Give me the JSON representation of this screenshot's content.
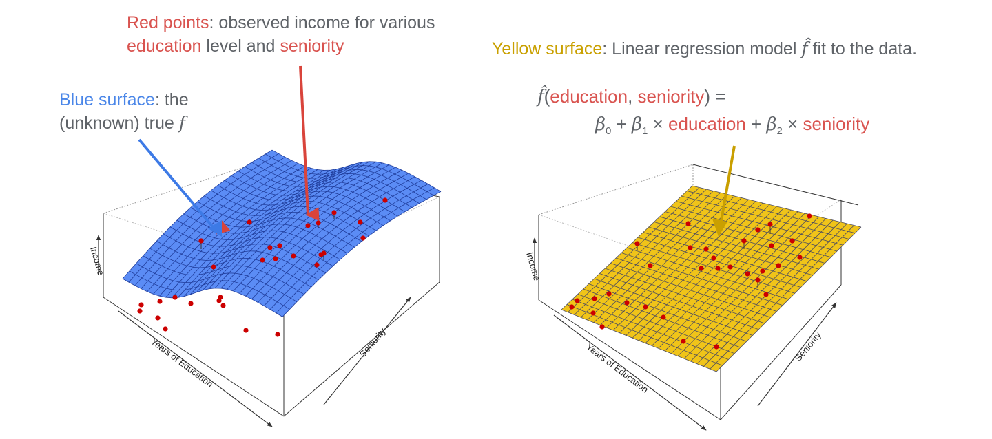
{
  "annotations": {
    "red_points": {
      "highlight": "Red points",
      "rest1": ": observed income for various",
      "w_education": "education",
      "w_level_and": " level and ",
      "w_seniority": "seniority"
    },
    "blue_surface": {
      "highlight": "Blue surface",
      "rest1": ": the",
      "line2": "(unknown) true ",
      "f": "f"
    },
    "yellow_surface": {
      "highlight": "Yellow surface",
      "rest_before": ": Linear regression model ",
      "fhat": "f̂",
      "rest_after": " fit to the data."
    }
  },
  "formula": {
    "fhat": "f̂",
    "open": "(",
    "arg1": "education",
    "comma": ", ",
    "arg2": "seniority",
    "close_eq": ") =",
    "b0": "β",
    "sub0": "0",
    "plus1": " + ",
    "b1": "β",
    "sub1": "1",
    "times1": " × ",
    "var1": "education",
    "plus2": " + ",
    "b2": "β",
    "sub2": "2",
    "times2": " × ",
    "var2": "seniority"
  },
  "plots": {
    "left": {
      "xlabel": "Years of Education",
      "ylabel": "Seniority",
      "zlabel": "Income"
    },
    "right": {
      "xlabel": "Years of Education",
      "ylabel": "Seniority",
      "zlabel": "Income"
    }
  },
  "colors": {
    "red": "#d9534f",
    "blue": "#4a86e8",
    "gold": "#c9a000",
    "gray_text": "#5f6368",
    "blue_surface": "#5b8cf5",
    "yellow_surface": "#f0c419",
    "point": "#cc0000",
    "red_arrow": "#d9443b",
    "blue_arrow": "#3d7ae6",
    "gold_arrow": "#c99f00"
  }
}
